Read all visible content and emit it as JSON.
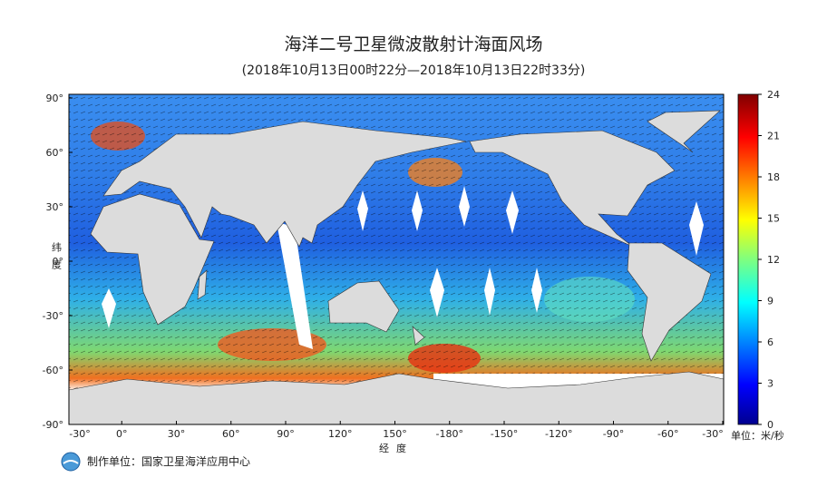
{
  "title": "海洋二号卫星微波散射计海面风场",
  "subtitle": "(2018年10月13日00时22分—2018年10月13日22时33分)",
  "map": {
    "lat_labels": [
      "90°",
      "60°",
      "30°",
      "0°",
      "-30°",
      "-60°",
      "-90°"
    ],
    "lon_labels": [
      "-30°",
      "0°",
      "30°",
      "60°",
      "90°",
      "120°",
      "150°",
      "-180°",
      "-150°",
      "-120°",
      "-90°",
      "-60°",
      "-30°"
    ],
    "y_axis_label": "纬度",
    "x_axis_label": "经度"
  },
  "colorbar": {
    "ticks": [
      0,
      3,
      6,
      9,
      12,
      15,
      18,
      21,
      24
    ],
    "unit": "单位：米/秒"
  },
  "credit": "制作单位：国家卫星海洋应用中心"
}
